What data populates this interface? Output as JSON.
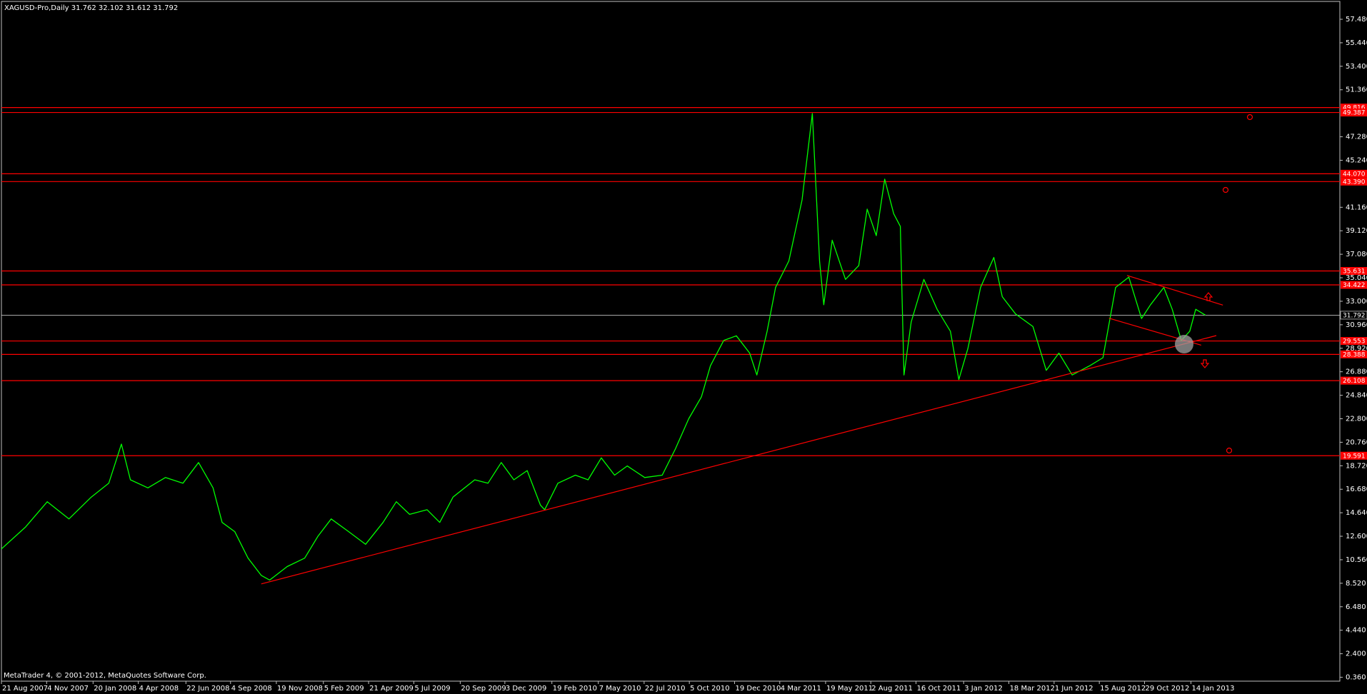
{
  "chart_data": {
    "type": "line",
    "title": "XAGUSD-Pro,Daily  31.762 32.102 31.612 31.792",
    "footer": "MetaTrader 4, © 2001-2012, MetaQuotes Software Corp.",
    "color": "#00ff00",
    "level_color": "#ff0000",
    "trendline_color": "#ff0000",
    "price_line_color": "#c0c0c0",
    "grid": false,
    "xlim": [
      "21 Aug 2007",
      "18 Sep 2013"
    ],
    "ylim": [
      0.02,
      59.03
    ],
    "xticks": [
      "21 Aug 2007",
      "4 Nov 2007",
      "20 Jan 2008",
      "4 Apr 2008",
      "22 Jun 2008",
      "4 Sep 2008",
      "19 Nov 2008",
      "5 Feb 2009",
      "21 Apr 2009",
      "5 Jul 2009",
      "20 Sep 2009",
      "3 Dec 2009",
      "19 Feb 2010",
      "7 May 2010",
      "22 Jul 2010",
      "5 Oct 2010",
      "19 Dec 2010",
      "4 Mar 2011",
      "19 May 2011",
      "2 Aug 2011",
      "16 Oct 2011",
      "3 Jan 2012",
      "18 Mar 2012",
      "1 Jun 2012",
      "15 Aug 2012",
      "29 Oct 2012",
      "14 Jan 2013"
    ],
    "yticks": [
      {
        "value": 0.36,
        "label": "0.360"
      },
      {
        "value": 2.4,
        "label": "2.400"
      },
      {
        "value": 4.44,
        "label": "4.440"
      },
      {
        "value": 6.48,
        "label": "6.480"
      },
      {
        "value": 8.52,
        "label": "8.520"
      },
      {
        "value": 10.56,
        "label": "10.560"
      },
      {
        "value": 12.6,
        "label": "12.600"
      },
      {
        "value": 14.64,
        "label": "14.640"
      },
      {
        "value": 16.68,
        "label": "16.680"
      },
      {
        "value": 18.72,
        "label": "18.720"
      },
      {
        "value": 20.76,
        "label": "20.760"
      },
      {
        "value": 22.8,
        "label": "22.800"
      },
      {
        "value": 24.84,
        "label": "24.840"
      },
      {
        "value": 26.88,
        "label": "26.880"
      },
      {
        "value": 28.92,
        "label": "28.920"
      },
      {
        "value": 30.96,
        "label": "30.960"
      },
      {
        "value": 33,
        "label": "33.000"
      },
      {
        "value": 35.04,
        "label": "35.040"
      },
      {
        "value": 37.08,
        "label": "37.080"
      },
      {
        "value": 39.12,
        "label": "39.120"
      },
      {
        "value": 41.16,
        "label": "41.160"
      },
      {
        "value": 45.24,
        "label": "45.240"
      },
      {
        "value": 47.28,
        "label": "47.280"
      },
      {
        "value": 51.36,
        "label": "51.360"
      },
      {
        "value": 53.4,
        "label": "53.400"
      },
      {
        "value": 55.44,
        "label": "55.440"
      },
      {
        "value": 57.48,
        "label": "57.480"
      }
    ],
    "x": [
      "21 Aug 2007",
      "30 Sep 2007",
      "5 Nov 2007",
      "11 Dec 2007",
      "17 Jan 2008",
      "15 Feb 2008",
      "7 Mar 2008",
      "22 Mar 2008",
      "20 Apr 2008",
      "19 May 2008",
      "17 Jun 2008",
      "13 Jul 2008",
      "6 Aug 2008",
      "21 Aug 2008",
      "11 Sep 2008",
      "3 Oct 2008",
      "25 Oct 2008",
      "8 Nov 2008",
      "7 Dec 2008",
      "5 Jan 2009",
      "27 Jan 2009",
      "18 Feb 2009",
      "19 Mar 2009",
      "16 Apr 2009",
      "15 May 2009",
      "6 Jun 2009",
      "28 Jun 2009",
      "27 Jul 2009",
      "17 Aug 2009",
      "8 Sep 2009",
      "14 Oct 2009",
      "5 Nov 2009",
      "27 Nov 2009",
      "18 Dec 2009",
      "9 Jan 2010",
      "31 Jan 2010",
      "7 Feb 2010",
      "1 Mar 2010",
      "30 Mar 2010",
      "20 Apr 2010",
      "12 May 2010",
      "3 Jun 2010",
      "24 Jun 2010",
      "23 Jul 2010",
      "21 Aug 2010",
      "12 Sep 2010",
      "4 Oct 2010",
      "25 Oct 2010",
      "9 Nov 2010",
      "1 Dec 2010",
      "22 Dec 2010",
      "13 Jan 2011",
      "25 Jan 2011",
      "11 Feb 2011",
      "25 Feb 2011",
      "19 Mar 2011",
      "10 Apr 2011",
      "27 Apr 2011",
      "9 May 2011",
      "16 May 2011",
      "30 May 2011",
      "21 Jun 2011",
      "13 Jul 2011",
      "27 Jul 2011",
      "11 Aug 2011",
      "25 Aug 2011",
      "9 Sep 2011",
      "20 Sep 2011",
      "26 Sep 2011",
      "8 Oct 2011",
      "29 Oct 2011",
      "20 Nov 2011",
      "12 Dec 2011",
      "26 Dec 2011",
      "10 Jan 2012",
      "31 Jan 2012",
      "22 Feb 2012",
      "7 Mar 2012",
      "29 Mar 2012",
      "27 Apr 2012",
      "19 May 2012",
      "9 Jun 2012",
      "1 Jul 2012",
      "30 Jul 2012",
      "21 Aug 2012",
      "11 Sep 2012",
      "3 Oct 2012",
      "24 Oct 2012",
      "8 Nov 2012",
      "30 Nov 2012",
      "14 Dec 2012",
      "29 Dec 2012",
      "12 Jan 2013",
      "22 Jan 2013",
      "7 Feb 2013"
    ],
    "values": [
      11.5,
      13.4,
      15.6,
      14.1,
      16.0,
      17.2,
      20.6,
      17.5,
      16.8,
      17.7,
      17.2,
      19.0,
      16.8,
      13.8,
      13.0,
      10.7,
      9.2,
      8.8,
      9.97,
      10.7,
      12.6,
      14.1,
      13.0,
      11.9,
      13.8,
      15.6,
      14.5,
      14.9,
      13.8,
      16.0,
      17.5,
      17.2,
      19.0,
      17.5,
      18.3,
      15.3,
      14.9,
      17.2,
      17.9,
      17.5,
      19.4,
      17.9,
      18.7,
      17.7,
      17.9,
      20.2,
      22.8,
      24.7,
      27.4,
      29.6,
      30.0,
      28.5,
      26.6,
      30.4,
      34.2,
      36.5,
      41.8,
      49.3,
      36.5,
      32.7,
      38.3,
      34.9,
      36.1,
      41.0,
      38.7,
      43.6,
      40.6,
      39.5,
      26.6,
      31.2,
      34.9,
      32.3,
      30.4,
      26.2,
      28.9,
      34.2,
      36.8,
      33.4,
      31.9,
      30.8,
      27.0,
      28.5,
      26.6,
      27.4,
      28.1,
      34.2,
      35.1,
      31.5,
      32.7,
      34.2,
      32.3,
      29.6,
      30.4,
      32.3,
      31.792
    ],
    "price_line": 31.792,
    "levels": [
      49.816,
      49.387,
      {
        "value": 44.07,
        "label": "44.070"
      },
      {
        "value": 43.39,
        "label": "43.390"
      },
      35.631,
      34.422,
      29.553,
      28.388,
      26.108,
      19.591
    ],
    "trendlines": [
      {
        "x": [
          "25 Oct 2008",
          "25 Feb 2013"
        ],
        "values": [
          8.46,
          30.02
        ]
      },
      {
        "x": [
          "30 Sep 2012",
          "8 Mar 2013"
        ],
        "values": [
          35.24,
          32.67
        ]
      },
      {
        "x": [
          "31 Aug 2012",
          "31 Jan 2013"
        ],
        "values": [
          31.53,
          29.19
        ]
      }
    ]
  }
}
